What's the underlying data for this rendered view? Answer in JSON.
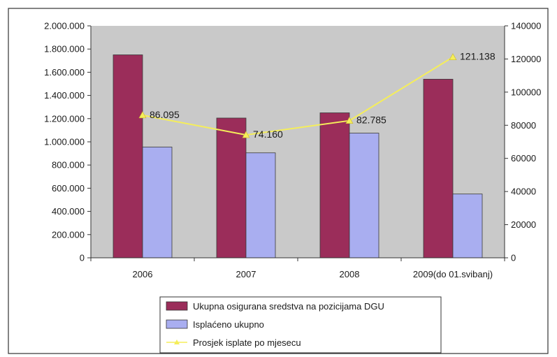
{
  "chart_data": {
    "type": "bar",
    "categories": [
      "2006",
      "2007",
      "2008",
      "2009(do 01.svibanj)"
    ],
    "series": [
      {
        "name": "Ukupna osigurana sredstva na pozicijama DGU",
        "type": "bar",
        "axis": "left",
        "color": "#9b2d5a",
        "values": [
          1750000,
          1205000,
          1250000,
          1540000
        ]
      },
      {
        "name": "Isplaćeno ukupno",
        "type": "bar",
        "axis": "left",
        "color": "#a9aef0",
        "values": [
          955000,
          905000,
          1075000,
          550000
        ]
      },
      {
        "name": "Prosjek isplate po mjesecu",
        "type": "line",
        "axis": "right",
        "color": "#f5ee5a",
        "values": [
          86095,
          74160,
          82785,
          121138
        ],
        "labels": [
          "86.095",
          "74.160",
          "82.785",
          "121.138"
        ]
      }
    ],
    "y_left": {
      "ylim": [
        0,
        2000000
      ],
      "ticks": [
        "0",
        "200.000",
        "400.000",
        "600.000",
        "800.000",
        "1.000.000",
        "1.200.000",
        "1.400.000",
        "1.600.000",
        "1.800.000",
        "2.000.000"
      ]
    },
    "y_right": {
      "ylim": [
        0,
        140000
      ],
      "ticks": [
        "0",
        "20000",
        "40000",
        "60000",
        "80000",
        "100000",
        "120000",
        "140000"
      ]
    },
    "grid": false,
    "legend_placement": "bottom-center",
    "plot_background": "#c9c9c9"
  }
}
